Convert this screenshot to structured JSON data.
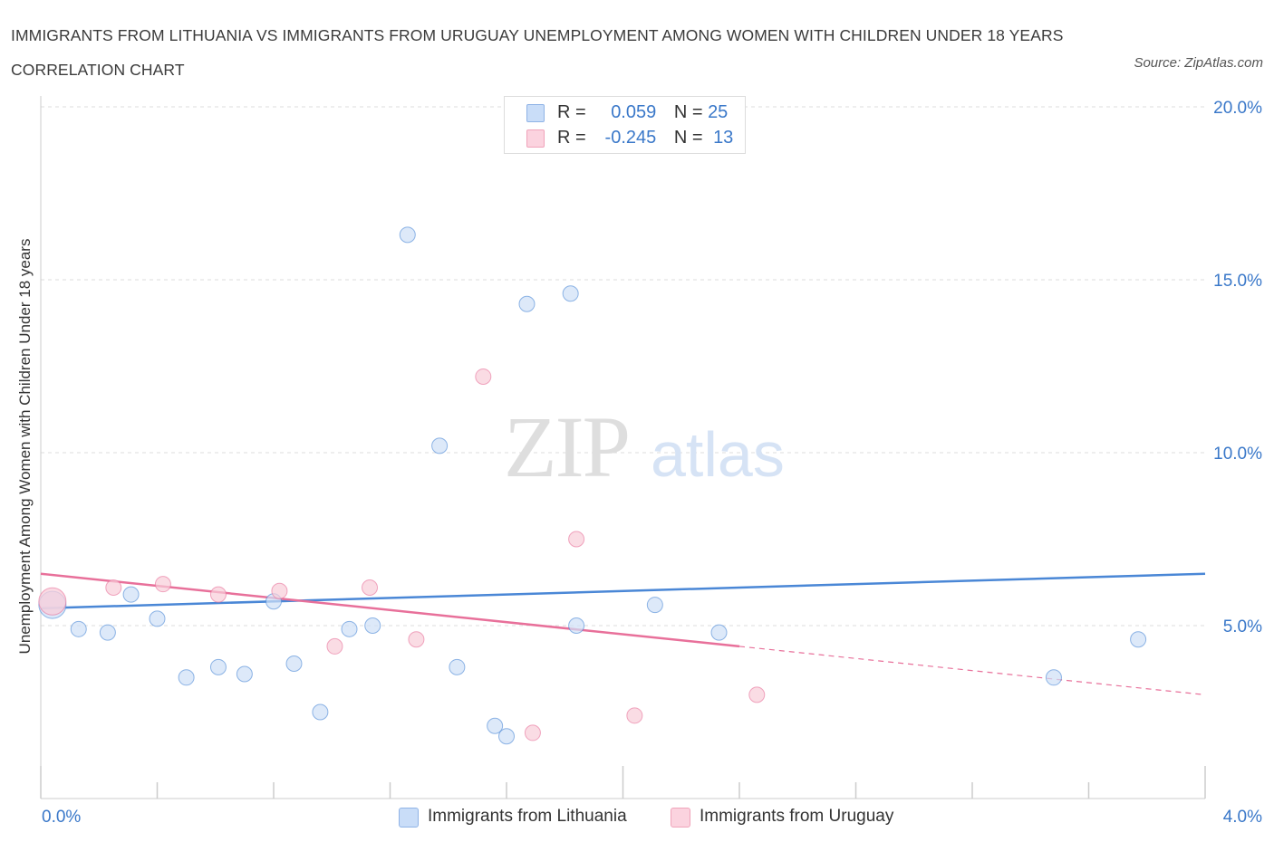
{
  "title": "IMMIGRANTS FROM LITHUANIA VS IMMIGRANTS FROM URUGUAY UNEMPLOYMENT AMONG WOMEN WITH CHILDREN UNDER 18 YEARS CORRELATION CHART",
  "source": "Source: ZipAtlas.com",
  "watermark": {
    "zip": "ZIP",
    "atlas": "atlas"
  },
  "legend_top": [
    {
      "r_label": "R =",
      "r_value": "0.059",
      "n_label": "N =",
      "n_value": "25",
      "color": "#a9c9f5"
    },
    {
      "r_label": "R =",
      "r_value": "-0.245",
      "n_label": "N =",
      "n_value": "13",
      "color": "#f7b9cb"
    }
  ],
  "chart_data": {
    "type": "scatter",
    "title": "IMMIGRANTS FROM LITHUANIA VS IMMIGRANTS FROM URUGUAY UNEMPLOYMENT AMONG WOMEN WITH CHILDREN UNDER 18 YEARS CORRELATION CHART",
    "xlabel": "",
    "ylabel": "Unemployment Among Women with Children Under 18 years",
    "xlim": [
      0,
      4
    ],
    "ylim": [
      0,
      20
    ],
    "x_tick_labels": [
      "0.0%",
      "4.0%"
    ],
    "y_ticks": [
      5,
      10,
      15,
      20
    ],
    "y_tick_labels": [
      "5.0%",
      "10.0%",
      "15.0%",
      "20.0%"
    ],
    "grid": "horizontal dashed",
    "legend": "bottom-center",
    "series": [
      {
        "name": "Immigrants from Lithuania",
        "color": "#4a87d6",
        "fill": "#cfe0f7",
        "R": 0.059,
        "N": 25,
        "points": [
          [
            0.04,
            5.6
          ],
          [
            0.13,
            4.9
          ],
          [
            0.23,
            4.8
          ],
          [
            0.31,
            5.9
          ],
          [
            0.4,
            5.2
          ],
          [
            0.5,
            3.5
          ],
          [
            0.61,
            3.8
          ],
          [
            0.7,
            3.6
          ],
          [
            0.8,
            5.7
          ],
          [
            0.87,
            3.9
          ],
          [
            0.96,
            2.5
          ],
          [
            1.06,
            4.9
          ],
          [
            1.14,
            5.0
          ],
          [
            1.26,
            16.3
          ],
          [
            1.37,
            10.2
          ],
          [
            1.43,
            3.8
          ],
          [
            1.56,
            2.1
          ],
          [
            1.6,
            1.8
          ],
          [
            1.67,
            14.3
          ],
          [
            1.82,
            14.6
          ],
          [
            1.84,
            5.0
          ],
          [
            2.11,
            5.6
          ],
          [
            2.33,
            4.8
          ],
          [
            3.48,
            3.5
          ],
          [
            3.77,
            4.6
          ]
        ],
        "trend": {
          "x": [
            0,
            4
          ],
          "y": [
            5.5,
            6.5
          ]
        }
      },
      {
        "name": "Immigrants from Uruguay",
        "color": "#e8709a",
        "fill": "#f8cdd9",
        "R": -0.245,
        "N": 13,
        "points": [
          [
            0.04,
            5.7
          ],
          [
            0.25,
            6.1
          ],
          [
            0.42,
            6.2
          ],
          [
            0.61,
            5.9
          ],
          [
            0.82,
            6.0
          ],
          [
            1.01,
            4.4
          ],
          [
            1.13,
            6.1
          ],
          [
            1.29,
            4.6
          ],
          [
            1.52,
            12.2
          ],
          [
            1.69,
            1.9
          ],
          [
            1.84,
            7.5
          ],
          [
            2.04,
            2.4
          ],
          [
            2.46,
            3.0
          ]
        ],
        "trend": {
          "x": [
            0,
            2.4
          ],
          "y": [
            6.5,
            4.4
          ]
        },
        "trend_extension": {
          "x": [
            2.4,
            4
          ],
          "y": [
            4.4,
            3.0
          ]
        }
      }
    ]
  }
}
